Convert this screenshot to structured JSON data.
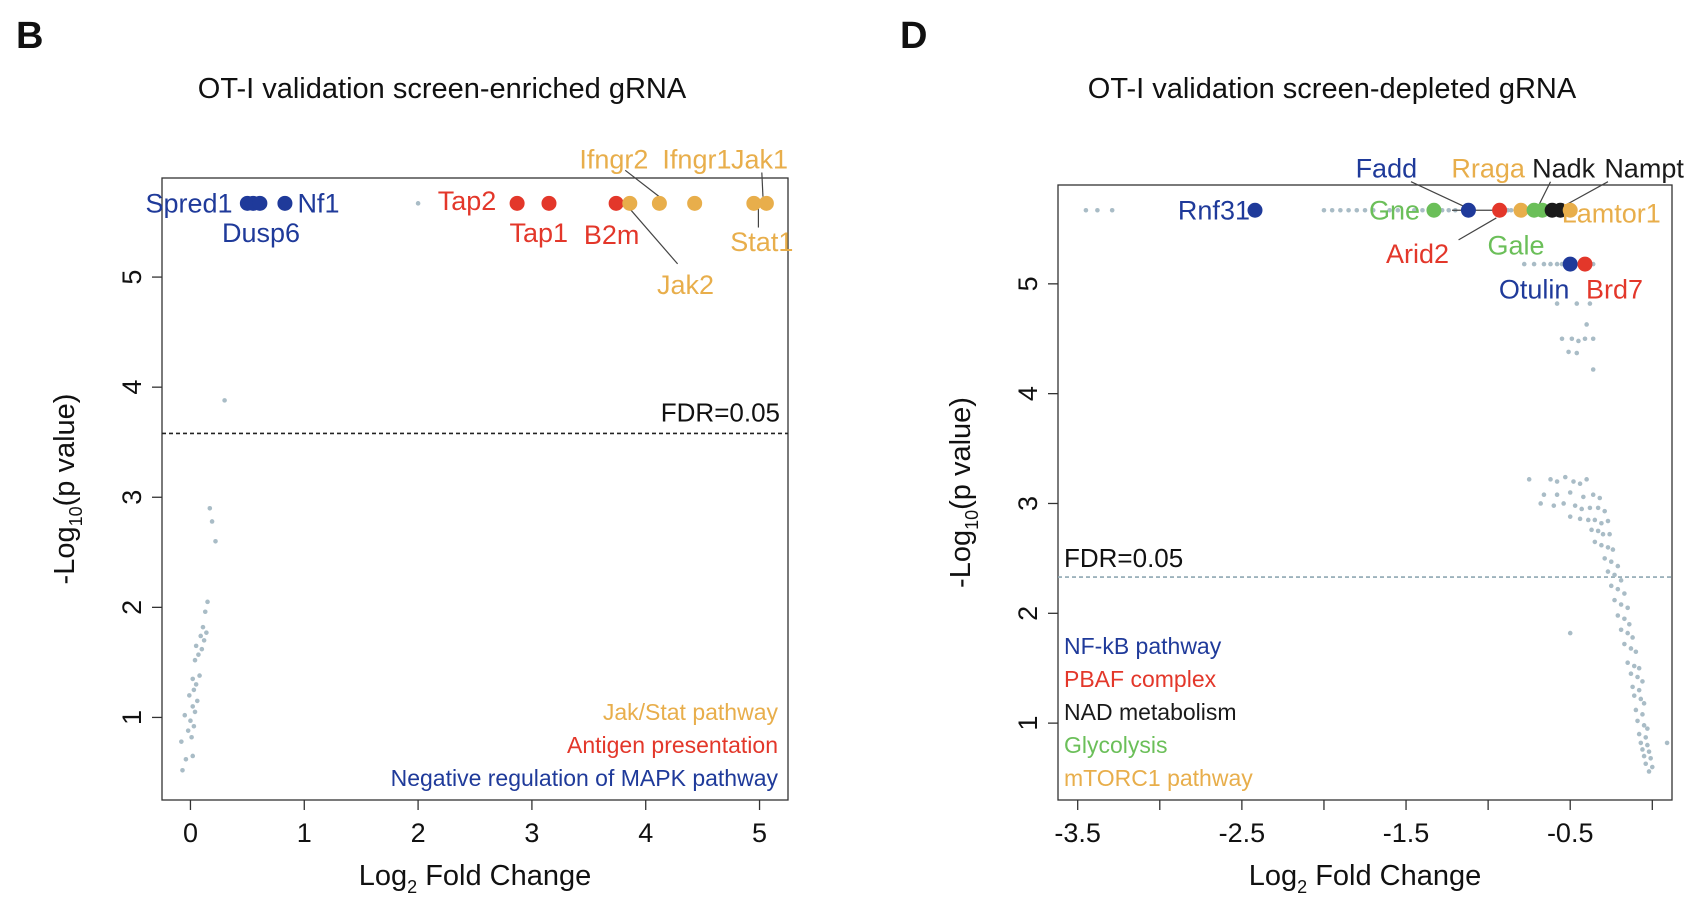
{
  "colors": {
    "jakstat": "#E8AE4B",
    "antigen": "#E3372A",
    "mapk": "#1F3A9A",
    "nfkb": "#1F3A9A",
    "pbaf": "#E3372A",
    "nad": "#1A1A1A",
    "glycolysis": "#6BBF59",
    "mtorc1": "#E8AE4B",
    "background_point": "#A9BCC6",
    "axis": "#333333"
  },
  "chart_data": [
    {
      "panel_letter": "B",
      "type": "scatter",
      "title": "OT-I validation screen-enriched gRNA",
      "xlabel_main": "Log",
      "xlabel_sub": "2",
      "xlabel_rest": " Fold Change",
      "ylabel_main": "-Log",
      "ylabel_sub": "10",
      "ylabel_rest": "(p value)",
      "xlim": [
        -0.25,
        5.25
      ],
      "ylim": [
        0.25,
        5.9
      ],
      "xticks": [
        0,
        1,
        2,
        3,
        4,
        5
      ],
      "xtick_labels": [
        "0",
        "1",
        "2",
        "3",
        "4",
        "5"
      ],
      "yticks": [
        1,
        2,
        3,
        4,
        5
      ],
      "ytick_labels": [
        "1",
        "2",
        "3",
        "4",
        "5"
      ],
      "fdr": {
        "y": 3.58,
        "label": "FDR=0.05"
      },
      "background_points": [
        [
          -0.07,
          0.52
        ],
        [
          -0.04,
          0.62
        ],
        [
          0.02,
          0.65
        ],
        [
          -0.08,
          0.78
        ],
        [
          0.01,
          0.82
        ],
        [
          -0.02,
          0.88
        ],
        [
          0.03,
          0.92
        ],
        [
          0.0,
          0.97
        ],
        [
          -0.05,
          1.02
        ],
        [
          0.04,
          1.05
        ],
        [
          0.02,
          1.1
        ],
        [
          0.06,
          1.15
        ],
        [
          -0.01,
          1.2
        ],
        [
          0.03,
          1.25
        ],
        [
          0.05,
          1.3
        ],
        [
          0.02,
          1.35
        ],
        [
          0.08,
          1.38
        ],
        [
          0.04,
          1.52
        ],
        [
          0.07,
          1.57
        ],
        [
          0.1,
          1.62
        ],
        [
          0.05,
          1.65
        ],
        [
          0.12,
          1.7
        ],
        [
          0.09,
          1.74
        ],
        [
          0.14,
          1.77
        ],
        [
          0.11,
          1.82
        ],
        [
          0.13,
          1.96
        ],
        [
          0.15,
          2.05
        ],
        [
          0.22,
          2.6
        ],
        [
          0.19,
          2.78
        ],
        [
          0.17,
          2.9
        ],
        [
          0.3,
          3.88
        ],
        [
          2.0,
          5.67
        ]
      ],
      "highlight_points": [
        {
          "x": 0.5,
          "y": 5.67,
          "group": "mapk"
        },
        {
          "x": 0.55,
          "y": 5.67,
          "group": "mapk"
        },
        {
          "x": 0.61,
          "y": 5.67,
          "group": "mapk"
        },
        {
          "x": 0.83,
          "y": 5.67,
          "group": "mapk"
        },
        {
          "x": 2.87,
          "y": 5.67,
          "group": "antigen"
        },
        {
          "x": 3.15,
          "y": 5.67,
          "group": "antigen"
        },
        {
          "x": 3.74,
          "y": 5.67,
          "group": "antigen"
        },
        {
          "x": 3.86,
          "y": 5.67,
          "group": "jakstat"
        },
        {
          "x": 4.12,
          "y": 5.67,
          "group": "jakstat"
        },
        {
          "x": 4.43,
          "y": 5.67,
          "group": "jakstat"
        },
        {
          "x": 4.95,
          "y": 5.67,
          "group": "jakstat"
        },
        {
          "x": 5.06,
          "y": 5.67,
          "group": "jakstat"
        }
      ],
      "labels": [
        {
          "text": "Spred1",
          "x": 0.37,
          "y": 5.67,
          "group": "mapk",
          "anchor": "end"
        },
        {
          "text": "Nf1",
          "x": 0.94,
          "y": 5.67,
          "group": "mapk",
          "anchor": "start"
        },
        {
          "text": "Dusp6",
          "x": 0.62,
          "y": 5.4,
          "group": "mapk",
          "anchor": "middle"
        },
        {
          "text": "Tap2",
          "x": 2.43,
          "y": 5.69,
          "group": "antigen",
          "anchor": "middle"
        },
        {
          "text": "Tap1",
          "x": 3.06,
          "y": 5.4,
          "group": "antigen",
          "anchor": "middle"
        },
        {
          "text": "B2m",
          "x": 3.7,
          "y": 5.38,
          "group": "antigen",
          "anchor": "middle"
        },
        {
          "text": "Ifngr2",
          "x": 3.72,
          "y": 6.07,
          "group": "jakstat",
          "anchor": "middle"
        },
        {
          "text": "Ifngr1",
          "x": 4.45,
          "y": 6.07,
          "group": "jakstat",
          "anchor": "middle"
        },
        {
          "text": "Jak1",
          "x": 5.0,
          "y": 6.07,
          "group": "jakstat",
          "anchor": "middle"
        },
        {
          "text": "Jak2",
          "x": 4.35,
          "y": 4.93,
          "group": "jakstat",
          "anchor": "middle"
        },
        {
          "text": "Stat1",
          "x": 5.02,
          "y": 5.32,
          "group": "jakstat",
          "anchor": "middle"
        }
      ],
      "leader_lines": [
        {
          "from": [
            3.82,
            5.97
          ],
          "to": [
            4.12,
            5.73
          ]
        },
        {
          "from": [
            3.86,
            5.62
          ],
          "to": [
            4.28,
            5.12
          ]
        },
        {
          "from": [
            5.02,
            5.95
          ],
          "to": [
            5.03,
            5.73
          ]
        },
        {
          "from": [
            4.99,
            5.62
          ],
          "to": [
            4.99,
            5.45
          ]
        }
      ],
      "legend": [
        {
          "text": "Jak/Stat pathway",
          "group": "jakstat"
        },
        {
          "text": "Antigen presentation",
          "group": "antigen"
        },
        {
          "text": "Negative regulation of MAPK pathway",
          "group": "mapk"
        }
      ],
      "legend_align": "bottom-right"
    },
    {
      "panel_letter": "D",
      "type": "scatter",
      "title": "OT-I validation screen-depleted gRNA",
      "xlabel_main": "Log",
      "xlabel_sub": "2",
      "xlabel_rest": " Fold Change",
      "ylabel_main": "-Log",
      "ylabel_sub": "10",
      "ylabel_rest": "(p value)",
      "xlim": [
        -3.62,
        0.12
      ],
      "ylim": [
        0.3,
        5.9
      ],
      "xticks": [
        -3.5,
        -3.0,
        -2.5,
        -2.0,
        -1.5,
        -1.0,
        -0.5,
        0.0
      ],
      "xtick_labels": [
        "-3.5",
        "",
        "-2.5",
        "",
        "-1.5",
        "",
        "-0.5",
        ""
      ],
      "yticks": [
        1,
        2,
        3,
        4,
        5
      ],
      "ytick_labels": [
        "1",
        "2",
        "3",
        "4",
        "5"
      ],
      "fdr": {
        "y": 2.33,
        "label": "FDR=0.05"
      },
      "background_points": [
        [
          -3.45,
          5.67
        ],
        [
          -3.38,
          5.67
        ],
        [
          -3.29,
          5.67
        ],
        [
          -2.0,
          5.67
        ],
        [
          -1.95,
          5.67
        ],
        [
          -1.9,
          5.67
        ],
        [
          -1.85,
          5.67
        ],
        [
          -1.8,
          5.67
        ],
        [
          -1.75,
          5.67
        ],
        [
          -1.7,
          5.67
        ],
        [
          -1.6,
          5.67
        ],
        [
          -1.55,
          5.67
        ],
        [
          -1.45,
          5.67
        ],
        [
          -1.4,
          5.67
        ],
        [
          -1.35,
          5.67
        ],
        [
          -1.28,
          5.67
        ],
        [
          -1.24,
          5.67
        ],
        [
          -1.2,
          5.67
        ],
        [
          -0.95,
          5.67
        ],
        [
          -0.88,
          5.67
        ],
        [
          -0.86,
          5.67
        ],
        [
          -0.62,
          5.67
        ],
        [
          -0.58,
          5.67
        ],
        [
          -0.78,
          5.18
        ],
        [
          -0.72,
          5.18
        ],
        [
          -0.66,
          5.18
        ],
        [
          -0.62,
          5.18
        ],
        [
          -0.58,
          5.18
        ],
        [
          -0.55,
          5.18
        ],
        [
          -0.36,
          5.18
        ],
        [
          -0.46,
          4.82
        ],
        [
          -0.38,
          4.82
        ],
        [
          -0.58,
          4.82
        ],
        [
          -0.4,
          4.63
        ],
        [
          -0.55,
          4.5
        ],
        [
          -0.49,
          4.5
        ],
        [
          -0.45,
          4.48
        ],
        [
          -0.41,
          4.5
        ],
        [
          -0.36,
          4.5
        ],
        [
          -0.51,
          4.38
        ],
        [
          -0.46,
          4.37
        ],
        [
          -0.36,
          4.22
        ],
        [
          -0.75,
          3.22
        ],
        [
          -0.62,
          3.22
        ],
        [
          -0.58,
          3.2
        ],
        [
          -0.53,
          3.24
        ],
        [
          -0.48,
          3.2
        ],
        [
          -0.44,
          3.18
        ],
        [
          -0.4,
          3.22
        ],
        [
          -0.66,
          3.08
        ],
        [
          -0.58,
          3.08
        ],
        [
          -0.5,
          3.1
        ],
        [
          -0.42,
          3.06
        ],
        [
          -0.36,
          3.08
        ],
        [
          -0.32,
          3.05
        ],
        [
          -0.68,
          3.0
        ],
        [
          -0.6,
          2.98
        ],
        [
          -0.54,
          3.0
        ],
        [
          -0.47,
          2.98
        ],
        [
          -0.43,
          2.95
        ],
        [
          -0.38,
          2.96
        ],
        [
          -0.33,
          2.96
        ],
        [
          -0.29,
          2.93
        ],
        [
          -0.5,
          2.88
        ],
        [
          -0.44,
          2.86
        ],
        [
          -0.39,
          2.85
        ],
        [
          -0.35,
          2.85
        ],
        [
          -0.31,
          2.82
        ],
        [
          -0.27,
          2.84
        ],
        [
          -0.37,
          2.76
        ],
        [
          -0.33,
          2.75
        ],
        [
          -0.3,
          2.72
        ],
        [
          -0.26,
          2.72
        ],
        [
          -0.35,
          2.65
        ],
        [
          -0.31,
          2.62
        ],
        [
          -0.27,
          2.6
        ],
        [
          -0.24,
          2.58
        ],
        [
          -0.29,
          2.5
        ],
        [
          -0.25,
          2.47
        ],
        [
          -0.21,
          2.43
        ],
        [
          -0.27,
          2.38
        ],
        [
          -0.23,
          2.35
        ],
        [
          -0.19,
          2.3
        ],
        [
          -0.25,
          2.25
        ],
        [
          -0.21,
          2.22
        ],
        [
          -0.17,
          2.18
        ],
        [
          -0.23,
          2.12
        ],
        [
          -0.19,
          2.08
        ],
        [
          -0.15,
          2.05
        ],
        [
          -0.21,
          1.98
        ],
        [
          -0.17,
          1.95
        ],
        [
          -0.14,
          1.9
        ],
        [
          -0.5,
          1.82
        ],
        [
          -0.19,
          1.85
        ],
        [
          -0.15,
          1.82
        ],
        [
          -0.12,
          1.78
        ],
        [
          -0.17,
          1.72
        ],
        [
          -0.13,
          1.68
        ],
        [
          -0.1,
          1.65
        ],
        [
          -0.15,
          1.55
        ],
        [
          -0.11,
          1.52
        ],
        [
          -0.08,
          1.5
        ],
        [
          -0.13,
          1.45
        ],
        [
          -0.09,
          1.42
        ],
        [
          -0.06,
          1.38
        ],
        [
          -0.12,
          1.33
        ],
        [
          -0.08,
          1.3
        ],
        [
          -0.11,
          1.25
        ],
        [
          -0.07,
          1.22
        ],
        [
          -0.05,
          1.18
        ],
        [
          -0.1,
          1.12
        ],
        [
          -0.06,
          1.08
        ],
        [
          -0.09,
          1.02
        ],
        [
          -0.05,
          0.98
        ],
        [
          -0.03,
          0.95
        ],
        [
          -0.08,
          0.9
        ],
        [
          -0.04,
          0.87
        ],
        [
          -0.07,
          0.82
        ],
        [
          -0.03,
          0.8
        ],
        [
          0.09,
          0.82
        ],
        [
          -0.06,
          0.76
        ],
        [
          -0.02,
          0.74
        ],
        [
          -0.05,
          0.7
        ],
        [
          -0.01,
          0.68
        ],
        [
          -0.04,
          0.63
        ],
        [
          0.0,
          0.6
        ],
        [
          -0.02,
          0.56
        ]
      ],
      "highlight_points": [
        {
          "x": -2.42,
          "y": 5.67,
          "group": "nfkb"
        },
        {
          "x": -1.33,
          "y": 5.67,
          "group": "glycolysis"
        },
        {
          "x": -1.12,
          "y": 5.67,
          "group": "nfkb"
        },
        {
          "x": -0.93,
          "y": 5.67,
          "group": "pbaf"
        },
        {
          "x": -0.8,
          "y": 5.67,
          "group": "mtorc1"
        },
        {
          "x": -0.72,
          "y": 5.67,
          "group": "glycolysis"
        },
        {
          "x": -0.67,
          "y": 5.67,
          "group": "glycolysis"
        },
        {
          "x": -0.61,
          "y": 5.67,
          "group": "nad"
        },
        {
          "x": -0.56,
          "y": 5.67,
          "group": "nad"
        },
        {
          "x": -0.5,
          "y": 5.67,
          "group": "mtorc1"
        },
        {
          "x": -0.5,
          "y": 5.18,
          "group": "nfkb"
        },
        {
          "x": -0.41,
          "y": 5.18,
          "group": "pbaf"
        }
      ],
      "labels": [
        {
          "text": "Rnf31",
          "x": -2.67,
          "y": 5.67,
          "group": "nfkb",
          "anchor": "middle"
        },
        {
          "text": "Fadd",
          "x": -1.62,
          "y": 6.05,
          "group": "nfkb",
          "anchor": "middle"
        },
        {
          "text": "Rraga",
          "x": -1.0,
          "y": 6.05,
          "group": "mtorc1",
          "anchor": "middle"
        },
        {
          "text": "Nadk",
          "x": -0.54,
          "y": 6.05,
          "group": "nad",
          "anchor": "middle"
        },
        {
          "text": "Nampt",
          "x": -0.05,
          "y": 6.05,
          "group": "nad",
          "anchor": "middle"
        },
        {
          "text": "Gne",
          "x": -1.57,
          "y": 5.67,
          "group": "glycolysis",
          "anchor": "middle"
        },
        {
          "text": "Lamtor1",
          "x": -0.25,
          "y": 5.64,
          "group": "mtorc1",
          "anchor": "middle"
        },
        {
          "text": "Gale",
          "x": -0.83,
          "y": 5.35,
          "group": "glycolysis",
          "anchor": "middle"
        },
        {
          "text": "Arid2",
          "x": -1.43,
          "y": 5.27,
          "group": "pbaf",
          "anchor": "middle"
        },
        {
          "text": "Otulin",
          "x": -0.72,
          "y": 4.95,
          "group": "nfkb",
          "anchor": "middle"
        },
        {
          "text": "Brd7",
          "x": -0.23,
          "y": 4.95,
          "group": "pbaf",
          "anchor": "middle"
        }
      ],
      "leader_lines": [
        {
          "from": [
            -1.47,
            5.93
          ],
          "to": [
            -1.14,
            5.7
          ]
        },
        {
          "from": [
            -1.22,
            5.67
          ],
          "to": [
            -0.97,
            5.67
          ]
        },
        {
          "from": [
            -0.95,
            5.6
          ],
          "to": [
            -1.18,
            5.4
          ]
        },
        {
          "from": [
            -0.62,
            5.93
          ],
          "to": [
            -0.69,
            5.72
          ]
        },
        {
          "from": [
            -0.27,
            5.93
          ],
          "to": [
            -0.55,
            5.7
          ]
        }
      ],
      "legend": [
        {
          "text": "NF-kB pathway",
          "group": "nfkb"
        },
        {
          "text": "PBAF complex",
          "group": "pbaf"
        },
        {
          "text": "NAD metabolism",
          "group": "nad"
        },
        {
          "text": "Glycolysis",
          "group": "glycolysis"
        },
        {
          "text": "mTORC1 pathway",
          "group": "mtorc1"
        }
      ],
      "legend_align": "bottom-left"
    }
  ]
}
